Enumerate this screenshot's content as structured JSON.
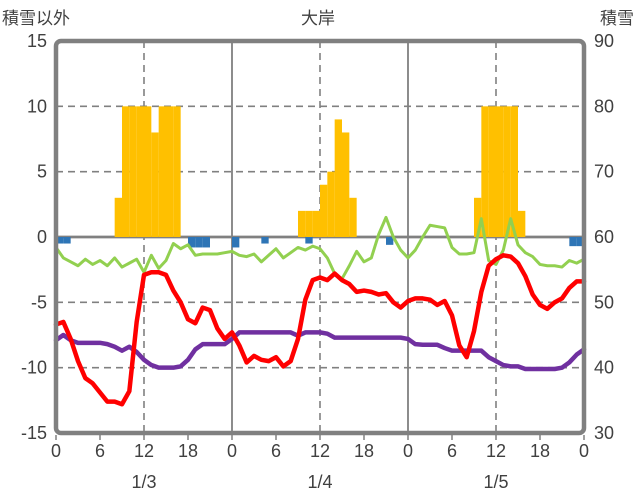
{
  "chart_data": {
    "type": "combo-bar-line",
    "title": "大岸",
    "left_axis": {
      "title": "積雪以外",
      "min": -15,
      "max": 15,
      "ticks": [
        15,
        10,
        5,
        0,
        -5,
        -10,
        -15
      ],
      "dashed_gridlines": [
        10,
        5,
        -5,
        -10
      ]
    },
    "right_axis": {
      "title": "積雪",
      "min": 30,
      "max": 90,
      "ticks": [
        90,
        80,
        70,
        60,
        50,
        40,
        30
      ]
    },
    "x_axis": {
      "total_hours": 72,
      "tick_hours": [
        0,
        6,
        12,
        18,
        24,
        30,
        36,
        42,
        48,
        54,
        60,
        66,
        72
      ],
      "tick_labels": [
        "0",
        "6",
        "12",
        "18",
        "0",
        "6",
        "12",
        "18",
        "0",
        "6",
        "12",
        "18",
        "0"
      ],
      "day_labels": [
        {
          "hour": 12,
          "label": "1/3"
        },
        {
          "hour": 36,
          "label": "1/4"
        },
        {
          "hour": 60,
          "label": "1/5"
        }
      ],
      "solid_gridline_hours": [
        24,
        48
      ],
      "dashed_gridline_hours": [
        12,
        36,
        60
      ]
    },
    "series": {
      "yellow_bars": {
        "axis": "left",
        "color": "#FFC000",
        "points": [
          [
            8,
            3
          ],
          [
            9,
            10
          ],
          [
            10,
            10
          ],
          [
            11,
            10
          ],
          [
            12,
            10
          ],
          [
            13,
            8
          ],
          [
            14,
            10
          ],
          [
            15,
            10
          ],
          [
            16,
            10
          ],
          [
            33,
            2
          ],
          [
            34,
            2
          ],
          [
            35,
            2
          ],
          [
            36,
            4
          ],
          [
            37,
            5
          ],
          [
            38,
            9
          ],
          [
            39,
            8
          ],
          [
            40,
            3
          ],
          [
            57,
            3
          ],
          [
            58,
            10
          ],
          [
            59,
            10
          ],
          [
            60,
            10
          ],
          [
            61,
            10
          ],
          [
            62,
            10
          ],
          [
            63,
            2
          ]
        ]
      },
      "blue_bars": {
        "axis": "left",
        "color": "#2E75B6",
        "points": [
          [
            0,
            -0.5
          ],
          [
            1,
            -0.5
          ],
          [
            18,
            -0.8
          ],
          [
            19,
            -0.8
          ],
          [
            20,
            -0.8
          ],
          [
            24,
            -0.8
          ],
          [
            28,
            -0.5
          ],
          [
            34,
            -0.5
          ],
          [
            45,
            -0.6
          ],
          [
            70,
            -0.7
          ],
          [
            71,
            -0.7
          ]
        ]
      },
      "green_line": {
        "axis": "left",
        "color": "#92D050",
        "width": 3,
        "values": [
          -0.8,
          -1.6,
          -1.9,
          -2.2,
          -1.7,
          -2.1,
          -1.8,
          -2.2,
          -1.6,
          -2.3,
          -2.0,
          -1.7,
          -2.7,
          -1.4,
          -2.4,
          -1.8,
          -0.5,
          -0.9,
          -0.6,
          -1.4,
          -1.3,
          -1.3,
          -1.3,
          -1.2,
          -1.1,
          -1.4,
          -1.5,
          -1.3,
          -1.9,
          -1.4,
          -0.9,
          -1.6,
          -1.2,
          -0.8,
          -1.0,
          -0.7,
          -0.9,
          -1.6,
          -2.8,
          -3.2,
          -2.2,
          -1.1,
          -1.9,
          -1.6,
          0.2,
          1.5,
          0.0,
          -1.0,
          -1.6,
          -1.0,
          0.0,
          0.9,
          0.8,
          0.7,
          -0.8,
          -1.3,
          -1.3,
          -1.2,
          1.4,
          -1.8,
          -2.1,
          -1.0,
          1.4,
          -0.6,
          -1.2,
          -1.5,
          -2.1,
          -2.2,
          -2.2,
          -2.3,
          -1.8,
          -2.0,
          -1.7
        ]
      },
      "red_line": {
        "axis": "left",
        "color": "#FF0000",
        "width": 4.5,
        "values": [
          -6.7,
          -6.5,
          -7.8,
          -9.5,
          -10.8,
          -11.2,
          -11.9,
          -12.6,
          -12.6,
          -12.8,
          -11.8,
          -6.5,
          -2.9,
          -2.7,
          -2.7,
          -2.9,
          -4.1,
          -5.0,
          -6.3,
          -6.6,
          -5.4,
          -5.6,
          -7.0,
          -7.8,
          -7.3,
          -8.3,
          -9.6,
          -9.1,
          -9.4,
          -9.5,
          -9.2,
          -9.9,
          -9.5,
          -7.8,
          -4.8,
          -3.3,
          -3.1,
          -3.3,
          -2.8,
          -3.3,
          -3.6,
          -4.2,
          -4.1,
          -4.2,
          -4.4,
          -4.3,
          -5.0,
          -5.4,
          -4.9,
          -4.7,
          -4.7,
          -4.8,
          -5.2,
          -4.9,
          -6.0,
          -8.3,
          -9.2,
          -7.2,
          -4.2,
          -2.2,
          -1.7,
          -1.4,
          -1.5,
          -2.0,
          -3.0,
          -4.4,
          -5.2,
          -5.5,
          -5.0,
          -4.7,
          -3.9,
          -3.4,
          -3.4
        ]
      },
      "purple_line": {
        "axis": "right",
        "color": "#7030A0",
        "width": 4.5,
        "values": [
          44.2,
          45.0,
          44.2,
          43.8,
          43.8,
          43.8,
          43.8,
          43.6,
          43.2,
          42.6,
          43.2,
          42.4,
          41.2,
          40.4,
          40.0,
          40.0,
          40.0,
          40.2,
          41.2,
          42.8,
          43.6,
          43.6,
          43.6,
          43.6,
          44.4,
          45.4,
          45.4,
          45.4,
          45.4,
          45.4,
          45.4,
          45.4,
          45.4,
          44.9,
          45.4,
          45.4,
          45.4,
          45.2,
          44.6,
          44.6,
          44.6,
          44.6,
          44.6,
          44.6,
          44.6,
          44.6,
          44.6,
          44.6,
          44.4,
          43.6,
          43.5,
          43.5,
          43.5,
          43.0,
          42.6,
          42.6,
          42.6,
          42.6,
          42.6,
          41.6,
          41.0,
          40.4,
          40.2,
          40.2,
          39.8,
          39.8,
          39.8,
          39.8,
          39.8,
          40.0,
          40.8,
          42.0,
          42.8
        ]
      }
    },
    "style": {
      "grid_color": "#808080",
      "border_color": "#808080",
      "text_color": "#404040",
      "background": "#FFFFFF"
    }
  }
}
